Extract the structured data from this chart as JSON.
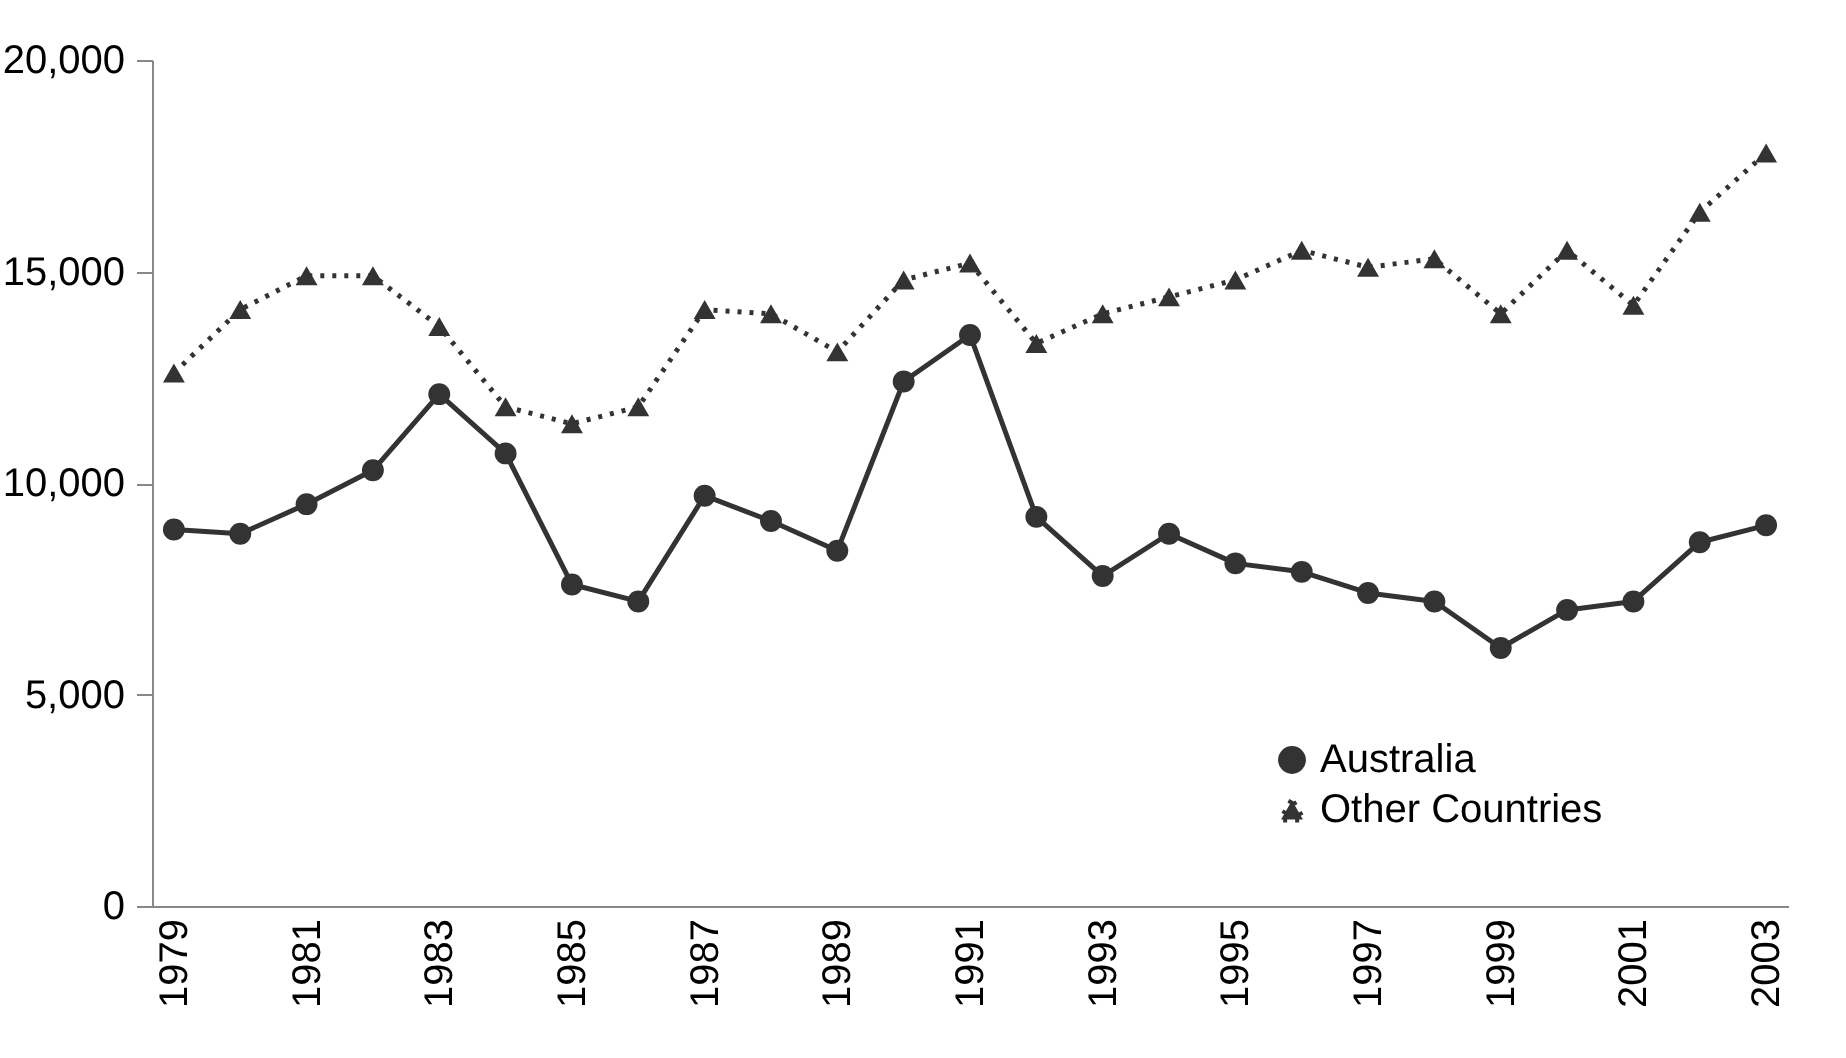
{
  "chart_data": {
    "type": "line",
    "categories": [
      "1979",
      null,
      "1981",
      null,
      "1983",
      null,
      "1985",
      null,
      "1987",
      null,
      "1989",
      null,
      "1991",
      null,
      "1993",
      null,
      "1995",
      null,
      "1997",
      null,
      "1999",
      null,
      "2001",
      null,
      "2003"
    ],
    "series": [
      {
        "name": "Australia",
        "color": "#333333",
        "marker": "circle",
        "line_style": "solid",
        "values": [
          8900,
          8800,
          9500,
          10300,
          12100,
          10700,
          7600,
          7200,
          9700,
          9100,
          8400,
          12400,
          13500,
          9200,
          7800,
          8800,
          8100,
          7900,
          7400,
          7200,
          6100,
          7000,
          7200,
          8600,
          9000
        ]
      },
      {
        "name": "Other Countries",
        "color": "#333333",
        "marker": "triangle",
        "line_style": "dotted",
        "values": [
          12600,
          14100,
          14900,
          14900,
          13700,
          11800,
          11400,
          11800,
          14100,
          14000,
          13100,
          14800,
          15200,
          13300,
          14000,
          14400,
          14800,
          15500,
          15100,
          15300,
          14000,
          15500,
          14200,
          16400,
          17800
        ]
      }
    ],
    "ylim": [
      0,
      20000
    ],
    "yticks": [
      0,
      {
        "value": 5000,
        "label": "5,000"
      },
      {
        "value": 10000,
        "label": "10,000"
      },
      {
        "value": 15000,
        "label": "15,000"
      },
      {
        "value": 20000,
        "label": "20,000"
      }
    ],
    "grid": false,
    "legend": "bottom right"
  }
}
